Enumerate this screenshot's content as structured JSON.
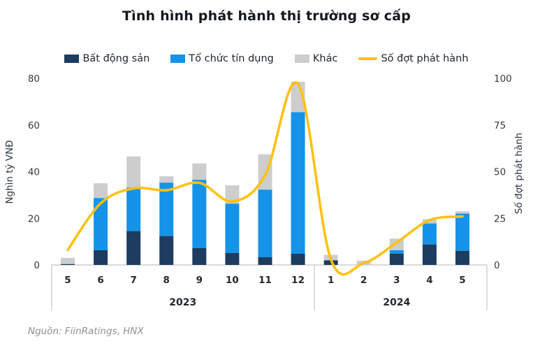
{
  "page": {
    "source": "Nguồn: FiinRatings, HNX"
  },
  "chart_data": {
    "type": "combo-stacked-bar-line",
    "title": "Tình hình phát hành thị trường sơ cấp",
    "legend_position": "top",
    "grid": false,
    "categories": [
      "5",
      "6",
      "7",
      "8",
      "9",
      "10",
      "11",
      "12",
      "1",
      "2",
      "3",
      "4",
      "5"
    ],
    "category_groups": [
      {
        "label": "2023",
        "from": 0,
        "to": 7
      },
      {
        "label": "2024",
        "from": 8,
        "to": 12
      }
    ],
    "left_axis": {
      "label": "Nghìn tỷ VNĐ",
      "ticks": [
        0,
        20,
        40,
        60,
        80
      ],
      "min": 0,
      "max": 80
    },
    "right_axis": {
      "label": "Số đợt phát hành",
      "ticks": [
        0,
        25,
        50,
        75,
        100
      ],
      "min": 0,
      "max": 100
    },
    "series": [
      {
        "name": "Bất động sản",
        "key": "bat-dong-san",
        "type": "bar",
        "axis": "left",
        "color": "#1D3C5F",
        "values": [
          0.4,
          6.3,
          14.5,
          12.4,
          7.2,
          5.1,
          3.3,
          4.8,
          2.0,
          0,
          4.8,
          8.8,
          6.0
        ]
      },
      {
        "name": "Tổ chức tín dụng",
        "key": "to-chuc-tin-dung",
        "type": "bar",
        "axis": "left",
        "color": "#1493E8",
        "values": [
          0,
          22.4,
          18.7,
          22.9,
          29.3,
          21.2,
          29.0,
          60.7,
          0,
          0,
          1.5,
          9.0,
          16.0
        ]
      },
      {
        "name": "Khác",
        "key": "khac",
        "type": "bar",
        "axis": "left",
        "color": "#CDCDCD",
        "values": [
          2.6,
          6.3,
          13.3,
          2.7,
          7.0,
          7.8,
          15.1,
          13.0,
          2.3,
          1.8,
          5.0,
          1.8,
          1.0
        ]
      },
      {
        "name": "Số đợt phát hành",
        "key": "so-dot-phat-hanh",
        "type": "line",
        "axis": "right",
        "color": "#FFC110",
        "values": [
          8,
          33,
          41,
          40,
          44,
          34,
          48,
          97,
          3,
          1,
          12,
          24,
          26
        ]
      }
    ],
    "colors": {
      "axis_frame": "#CFCFCF",
      "tick_text": "#33383f",
      "category_text": "#23272e"
    }
  }
}
